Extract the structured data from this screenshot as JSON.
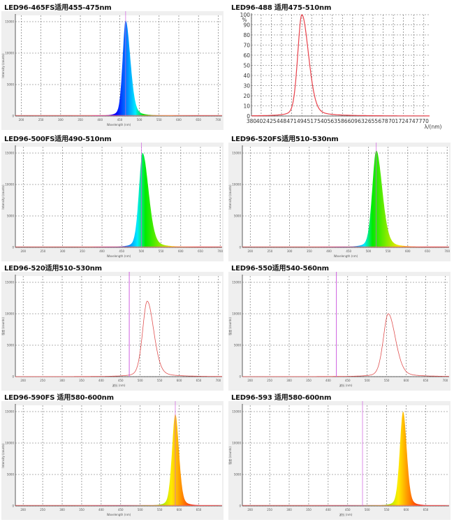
{
  "chart_data": [
    {
      "type": "area",
      "title": "LED96-465FS适用455-475nm",
      "style": "spectrum",
      "xlabel": "Wavelength (nm)",
      "ylabel": "Intensity (counts)",
      "x_ticks": [
        200,
        250,
        300,
        350,
        400,
        450,
        500,
        550,
        600,
        650,
        700
      ],
      "y_ticks": [
        0,
        5000,
        10000,
        15000
      ],
      "xlim": [
        185,
        710
      ],
      "ylim": [
        0,
        16000
      ],
      "peak_nm": 465,
      "peak_value": 15200,
      "fwhm_left": 9,
      "fwhm_right": 14,
      "marker_nm": 465
    },
    {
      "type": "line",
      "title": "LED96-488 适用475-510nm",
      "style": "percent",
      "xlabel": "λ/(nm)",
      "ylabel": "%",
      "x_ticks": [
        380,
        402,
        425,
        448,
        471,
        494,
        517,
        540,
        563,
        586,
        609,
        632,
        655,
        678,
        701,
        724,
        747,
        770
      ],
      "y_ticks": [
        0,
        10,
        20,
        30,
        40,
        50,
        60,
        70,
        80,
        90,
        100
      ],
      "xlim": [
        380,
        783
      ],
      "ylim": [
        0,
        100
      ],
      "peak_nm": 494,
      "peak_value": 100,
      "fwhm_left": 11,
      "fwhm_right": 18
    },
    {
      "type": "area",
      "title": "LED96-500FS适用490-510nm",
      "style": "spectrum",
      "xlabel": "Wavelength (nm)",
      "ylabel": "Intensity (counts)",
      "x_ticks": [
        200,
        250,
        300,
        350,
        400,
        450,
        500,
        550,
        600,
        650,
        700
      ],
      "y_ticks": [
        0,
        5000,
        10000,
        15000
      ],
      "xlim": [
        180,
        705
      ],
      "ylim": [
        0,
        16000
      ],
      "peak_nm": 503,
      "peak_value": 15000,
      "fwhm_left": 11,
      "fwhm_right": 18,
      "marker_nm": 500
    },
    {
      "type": "area",
      "title": "LED96-520FS适用510-530nm",
      "style": "spectrum",
      "xlabel": "Wavelength (nm)",
      "ylabel": "Intensity (counts)",
      "x_ticks": [
        200,
        250,
        300,
        350,
        400,
        450,
        500,
        550,
        600,
        650,
        700
      ],
      "y_ticks": [
        0,
        5000,
        10000,
        15000
      ],
      "xlim": [
        180,
        705
      ],
      "ylim": [
        0,
        16000
      ],
      "peak_nm": 520,
      "peak_value": 15400,
      "fwhm_left": 12,
      "fwhm_right": 18,
      "marker_nm": 520
    },
    {
      "type": "line",
      "title": "LED96-520适用510-530nm",
      "style": "line",
      "xlabel": "波长 (nm)",
      "ylabel": "强度 (counts)",
      "x_ticks": [
        200,
        250,
        300,
        350,
        400,
        450,
        500,
        550,
        600,
        650,
        700
      ],
      "y_ticks": [
        0,
        5000,
        10000,
        15000
      ],
      "xlim": [
        180,
        710
      ],
      "ylim": [
        0,
        16000
      ],
      "peak_nm": 518,
      "peak_value": 12000,
      "fwhm_left": 14,
      "fwhm_right": 20,
      "marker_nm": 472
    },
    {
      "type": "line",
      "title": "LED96-550适用540-560nm",
      "style": "line",
      "xlabel": "波长 (nm)",
      "ylabel": "强度 (counts)",
      "x_ticks": [
        200,
        250,
        300,
        350,
        400,
        450,
        500,
        550,
        600,
        650,
        700
      ],
      "y_ticks": [
        0,
        5000,
        10000,
        15000
      ],
      "xlim": [
        180,
        710
      ],
      "ylim": [
        0,
        16000
      ],
      "peak_nm": 554,
      "peak_value": 10000,
      "fwhm_left": 15,
      "fwhm_right": 22,
      "marker_nm": 421
    },
    {
      "type": "area",
      "title": "LED96-590FS 适用580-600nm",
      "style": "spectrum",
      "xlabel": "Wavelength (nm)",
      "ylabel": "Intensity (counts)",
      "x_ticks": [
        200,
        250,
        300,
        350,
        400,
        450,
        500,
        550,
        600,
        650
      ],
      "y_ticks": [
        0,
        5000,
        10000,
        15000
      ],
      "xlim": [
        180,
        710
      ],
      "ylim": [
        0,
        16000
      ],
      "peak_nm": 590,
      "peak_value": 14600,
      "fwhm_left": 10,
      "fwhm_right": 11,
      "marker_nm": 590
    },
    {
      "type": "area",
      "title": "LED96-593 适用580-600nm",
      "style": "spectrum",
      "xlabel": "波长 (nm)",
      "ylabel": "强度 (counts)",
      "x_ticks": [
        200,
        250,
        300,
        350,
        400,
        450,
        500,
        550,
        600,
        650
      ],
      "y_ticks": [
        0,
        5000,
        10000,
        15000
      ],
      "xlim": [
        180,
        710
      ],
      "ylim": [
        0,
        16000
      ],
      "peak_nm": 592,
      "peak_value": 15000,
      "fwhm_left": 10,
      "fwhm_right": 11,
      "marker_nm": 488
    }
  ]
}
